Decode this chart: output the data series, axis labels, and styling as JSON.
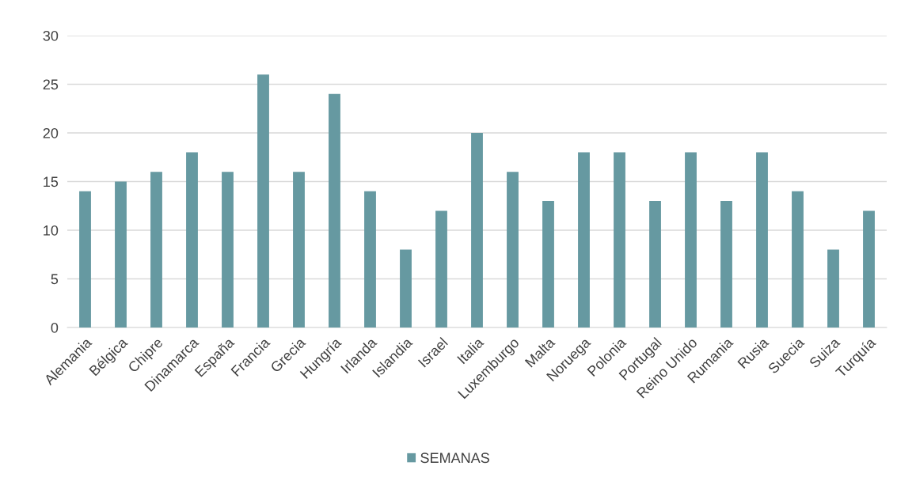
{
  "chart_data": {
    "type": "bar",
    "categories": [
      "Alemania",
      "Bélgica",
      "Chipre",
      "Dinamarca",
      "España",
      "Francia",
      "Grecia",
      "Hungría",
      "Irlanda",
      "Islandia",
      "Israel",
      "Italia",
      "Luxemburgo",
      "Malta",
      "Noruega",
      "Polonia",
      "Portugal",
      "Reino Unido",
      "Rumania",
      "Rusia",
      "Suecia",
      "Suiza",
      "Turquía"
    ],
    "series": [
      {
        "name": "SEMANAS",
        "color": "#6699a1",
        "values": [
          14,
          15,
          16,
          18,
          16,
          26,
          16,
          24,
          14,
          8,
          12,
          20,
          16,
          13,
          18,
          18,
          13,
          18,
          13,
          18,
          14,
          8,
          12
        ]
      }
    ],
    "ylim": [
      0,
      30
    ],
    "yticks": [
      0,
      5,
      10,
      15,
      20,
      25,
      30
    ],
    "grid": "y",
    "legend": "bottom"
  }
}
